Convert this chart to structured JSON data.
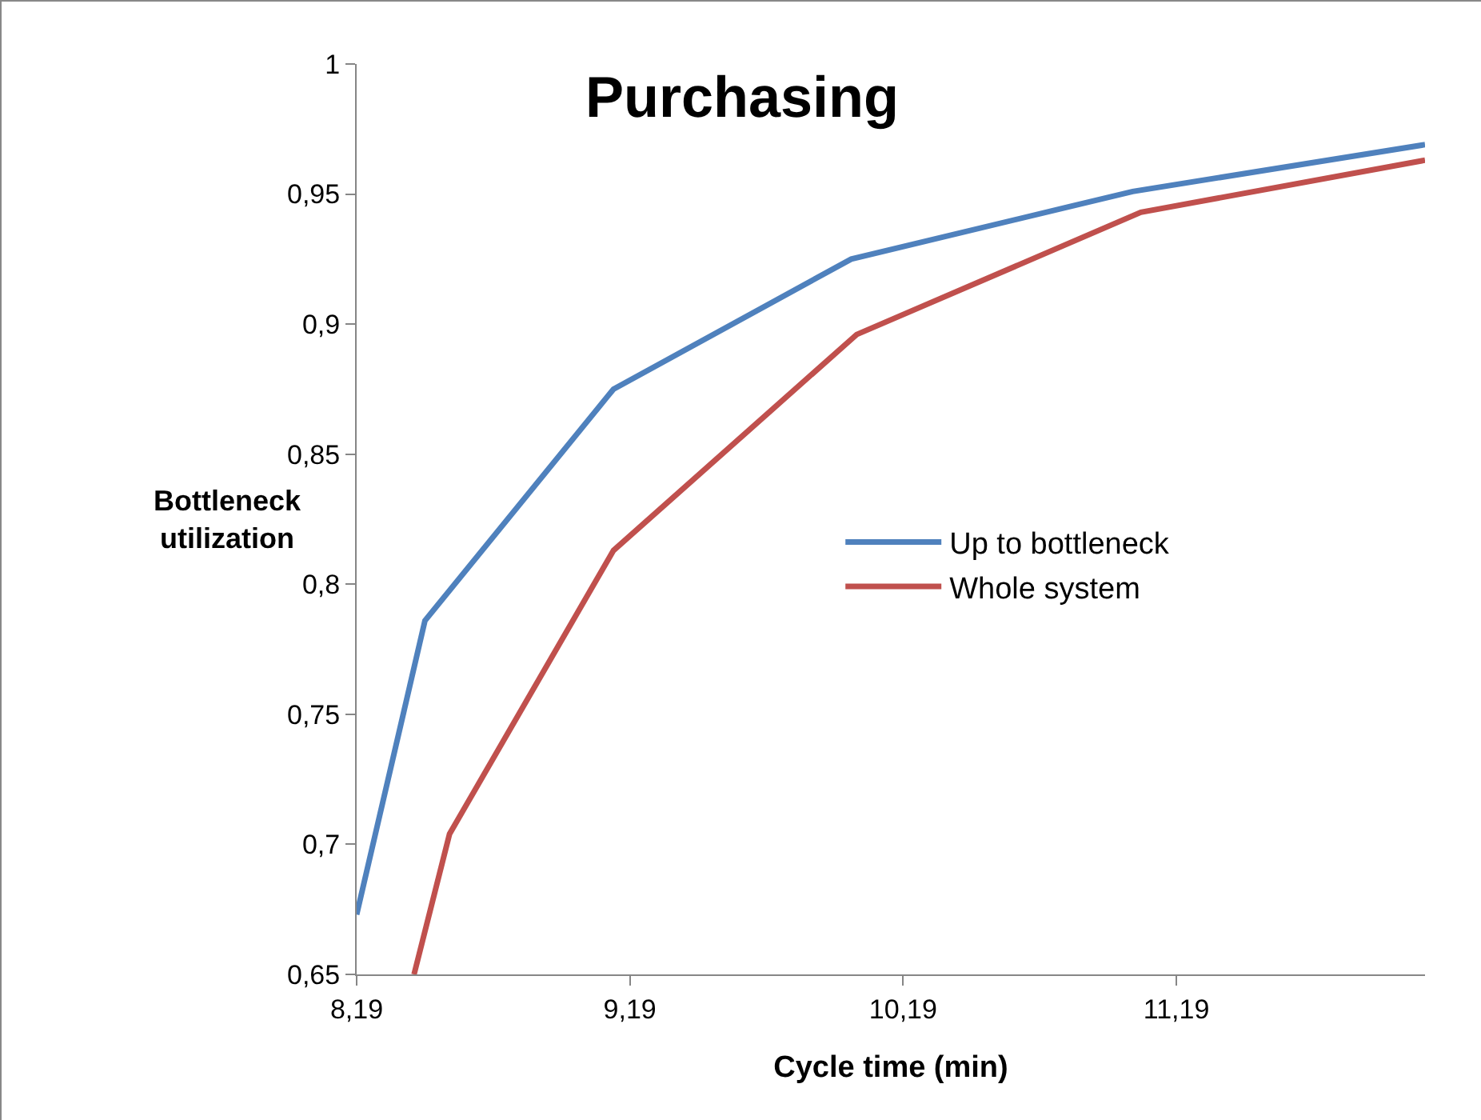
{
  "chart_data": {
    "type": "line",
    "title": "Purchasing",
    "xlabel": "Cycle time (min)",
    "ylabel": "Bottleneck utilization",
    "xlim": [
      8.19,
      12.1
    ],
    "xticks": [
      {
        "value": 8.19,
        "label": "8,19"
      },
      {
        "value": 9.19,
        "label": "9,19"
      },
      {
        "value": 10.19,
        "label": "10,19"
      },
      {
        "value": 11.19,
        "label": "11,19"
      }
    ],
    "ylim": [
      0.65,
      1
    ],
    "yticks": [
      {
        "value": 0.65,
        "label": "0,65"
      },
      {
        "value": 0.7,
        "label": "0,7"
      },
      {
        "value": 0.75,
        "label": "0,75"
      },
      {
        "value": 0.8,
        "label": "0,8"
      },
      {
        "value": 0.85,
        "label": "0,85"
      },
      {
        "value": 0.9,
        "label": "0,9"
      },
      {
        "value": 0.95,
        "label": "0,95"
      },
      {
        "value": 1,
        "label": "1"
      }
    ],
    "grid": false,
    "legend": "right",
    "marker": "none",
    "line_style": "solid",
    "series": [
      {
        "name": "Up to bottleneck",
        "color": "#4f81bd",
        "x": [
          8.19,
          8.44,
          9.13,
          10.0,
          11.03,
          12.1
        ],
        "values": [
          0.673,
          0.786,
          0.875,
          0.925,
          0.951,
          0.969
        ]
      },
      {
        "name": "Whole system",
        "color": "#c0504d",
        "x": [
          8.4,
          8.53,
          9.13,
          10.02,
          11.06,
          12.1
        ],
        "values": [
          0.65,
          0.704,
          0.813,
          0.896,
          0.943,
          0.963
        ]
      }
    ]
  }
}
